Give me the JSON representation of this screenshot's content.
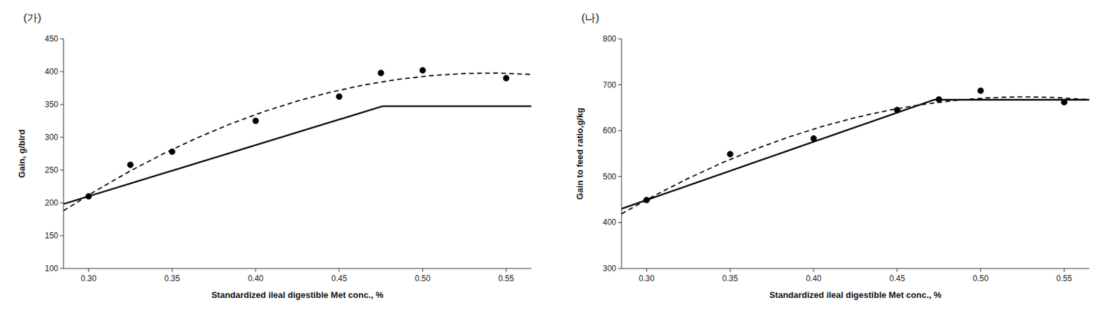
{
  "chart_data": [
    {
      "type": "scatter",
      "title": "(가)",
      "x_label": "Standardized ileal digestible Met conc., %",
      "y_label": "Gain, g/bird",
      "xlim": [
        0.285,
        0.565
      ],
      "xticks": [
        {
          "value": 0.3,
          "label": "0.30"
        },
        0.35,
        {
          "value": 0.4,
          "label": "0.40"
        },
        0.45,
        {
          "value": 0.5,
          "label": "0.50"
        },
        0.55
      ],
      "ylim": [
        100,
        450
      ],
      "yticks": [
        100,
        150,
        200,
        250,
        300,
        350,
        400,
        450
      ],
      "grid": false,
      "series": [
        {
          "type": "line",
          "line_style": "dashed",
          "color": "#000000",
          "x": [
            0.285,
            0.305,
            0.325,
            0.345,
            0.365,
            0.385,
            0.405,
            0.425,
            0.445,
            0.465,
            0.485,
            0.505,
            0.525,
            0.545,
            0.565
          ],
          "values": [
            188.0,
            219.6,
            248.7,
            275.2,
            299.1,
            320.4,
            339.1,
            355.2,
            368.8,
            379.8,
            388.1,
            393.9,
            397.2,
            397.8,
            395.8
          ]
        },
        {
          "type": "line",
          "line_style": "solid",
          "color": "#000000",
          "x": [
            0.285,
            0.476,
            0.565
          ],
          "values": [
            198.3,
            347.3,
            347.3
          ]
        },
        {
          "type": "scatter",
          "marker": "circle",
          "color": "#000000",
          "x": [
            0.3,
            0.325,
            0.35,
            0.4,
            0.45,
            0.475,
            0.5,
            0.55
          ],
          "values": [
            210,
            258,
            278,
            325,
            362,
            398,
            402,
            390
          ]
        }
      ]
    },
    {
      "type": "scatter",
      "title": "(나)",
      "x_label": "Standardized ileal digestible Met conc., %",
      "y_label": "Gain to feed ratio,g/kg",
      "xlim": [
        0.285,
        0.565
      ],
      "xticks": [
        {
          "value": 0.3,
          "label": "0.30"
        },
        0.35,
        {
          "value": 0.4,
          "label": "0.40"
        },
        0.45,
        {
          "value": 0.5,
          "label": "0.50"
        },
        0.55
      ],
      "ylim": [
        300,
        800
      ],
      "yticks": [
        300,
        400,
        500,
        600,
        700,
        800
      ],
      "grid": false,
      "series": [
        {
          "type": "line",
          "line_style": "dashed",
          "color": "#000000",
          "x": [
            0.285,
            0.305,
            0.325,
            0.345,
            0.365,
            0.385,
            0.405,
            0.425,
            0.445,
            0.465,
            0.485,
            0.505,
            0.525,
            0.545,
            0.565
          ],
          "values": [
            419.0,
            459.4,
            496.3,
            529.7,
            559.7,
            586.1,
            609.1,
            628.6,
            644.6,
            657.1,
            666.1,
            671.7,
            673.8,
            672.3,
            667.4
          ]
        },
        {
          "type": "line",
          "line_style": "solid",
          "color": "#000000",
          "x": [
            0.285,
            0.472,
            0.565
          ],
          "values": [
            430.0,
            667.3,
            667.3
          ]
        },
        {
          "type": "scatter",
          "marker": "circle",
          "color": "#000000",
          "x": [
            0.3,
            0.35,
            0.4,
            0.45,
            0.475,
            0.5,
            0.55
          ],
          "values": [
            449,
            549,
            583,
            645,
            668,
            687,
            662
          ]
        }
      ]
    }
  ]
}
